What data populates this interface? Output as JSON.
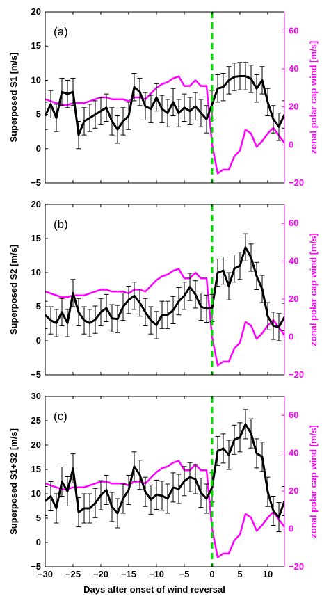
{
  "colors": {
    "s_series": "#000000",
    "wind_series": "#ff00ff",
    "onset_line": "#00dd00"
  },
  "xlabel": "Days after onset of wind reversal",
  "chart_data": [
    {
      "type": "line",
      "panel_label": "(a)",
      "ylabel": "Superposed S1 [m/s]",
      "y2label": "zonal polar cap wind [m/s]",
      "xlim": [
        -30,
        13
      ],
      "ylim": [
        -5,
        20
      ],
      "y2lim": [
        -20,
        70
      ],
      "yticks": [
        -5,
        0,
        5,
        10,
        15,
        20
      ],
      "y2ticks": [
        -20,
        0,
        20,
        40,
        60
      ],
      "xticks": [
        -30,
        -25,
        -20,
        -15,
        -10,
        -5,
        0,
        5,
        10
      ],
      "x": [
        -30,
        -29,
        -28,
        -27,
        -26,
        -25,
        -24,
        -23,
        -22,
        -21,
        -20,
        -19,
        -18,
        -17,
        -16,
        -15,
        -14,
        -13,
        -12,
        -11,
        -10,
        -9,
        -8,
        -7,
        -6,
        -5,
        -4,
        -3,
        -2,
        -1,
        0,
        1,
        2,
        3,
        4,
        5,
        6,
        7,
        8,
        9,
        10,
        11,
        12,
        13
      ],
      "series": [
        {
          "values": [
            4.8,
            6.5,
            4.5,
            8.3,
            8.0,
            8.3,
            2.0,
            4.0,
            4.5,
            5.0,
            5.5,
            6.0,
            4.0,
            2.8,
            4.0,
            4.8,
            9.0,
            8.3,
            6.2,
            5.8,
            7.5,
            5.8,
            5.2,
            6.8,
            5.2,
            6.0,
            5.5,
            6.2,
            5.2,
            4.3,
            6.5,
            8.8,
            9.0,
            10.0,
            10.5,
            10.6,
            10.6,
            10.2,
            8.8,
            10.0,
            6.8,
            4.3,
            3.2,
            5.0
          ],
          "error": [
            2,
            2,
            2,
            2,
            2,
            2,
            2,
            2,
            2,
            2,
            2,
            2,
            2,
            2,
            2,
            2,
            2,
            2,
            2,
            2,
            2,
            2,
            2,
            2,
            2,
            2,
            2,
            2,
            2,
            2,
            2,
            2,
            2,
            2,
            2,
            2,
            2,
            2,
            2,
            2,
            2,
            2,
            2,
            2
          ]
        },
        {
          "axis": "right",
          "x": [
            -30,
            -29,
            -28,
            -27,
            -26,
            -25,
            -24,
            -23,
            -22,
            -21,
            -20,
            -19,
            -18,
            -17,
            -16,
            -15,
            -14,
            -13,
            -12,
            -11,
            -10,
            -9,
            -8,
            -7,
            -6,
            -5,
            -4,
            -3,
            -2,
            -1,
            0,
            1,
            2,
            3,
            4,
            5,
            6,
            7,
            8,
            9,
            10,
            11,
            12,
            13
          ],
          "values": [
            24,
            23,
            22,
            21,
            21,
            22,
            22,
            22,
            23,
            24,
            25,
            25,
            24,
            24,
            24,
            23,
            25,
            25,
            24,
            27,
            30,
            32,
            33,
            35,
            36,
            31,
            31,
            34,
            31,
            31,
            0,
            -15,
            -13,
            -13,
            -6,
            -3,
            8,
            6,
            -1,
            2,
            6,
            9,
            5,
            1
          ]
        }
      ]
    },
    {
      "type": "line",
      "panel_label": "(b)",
      "ylabel": "Superposed S2 [m/s]",
      "y2label": "zonal polar cap wind [m/s]",
      "xlim": [
        -30,
        13
      ],
      "ylim": [
        -5,
        20
      ],
      "y2lim": [
        -20,
        70
      ],
      "yticks": [
        -5,
        0,
        5,
        10,
        15,
        20
      ],
      "y2ticks": [
        -20,
        0,
        20,
        40,
        60
      ],
      "xticks": [
        -30,
        -25,
        -20,
        -15,
        -10,
        -5,
        0,
        5,
        10
      ],
      "x": [
        -30,
        -29,
        -28,
        -27,
        -26,
        -25,
        -24,
        -23,
        -22,
        -21,
        -20,
        -19,
        -18,
        -17,
        -16,
        -15,
        -14,
        -13,
        -12,
        -11,
        -10,
        -9,
        -8,
        -7,
        -6,
        -5,
        -4,
        -3,
        -2,
        -1,
        0,
        1,
        2,
        3,
        4,
        5,
        6,
        7,
        8,
        9,
        10,
        11,
        12,
        13
      ],
      "series": [
        {
          "values": [
            3.8,
            3.0,
            2.6,
            4.2,
            2.6,
            7.0,
            4.2,
            3.0,
            2.6,
            3.1,
            4.2,
            4.8,
            3.3,
            3.2,
            5.0,
            6.0,
            6.6,
            5.6,
            4.2,
            3.0,
            2.3,
            3.8,
            3.8,
            4.5,
            5.8,
            6.6,
            7.9,
            6.8,
            5.0,
            4.7,
            4.8,
            10.0,
            10.3,
            8.0,
            10.6,
            11.0,
            13.7,
            12.2,
            9.5,
            7.6,
            3.6,
            2.2,
            2.0,
            3.5
          ],
          "error": [
            2,
            2,
            2,
            2,
            2,
            2,
            2,
            2,
            2,
            2,
            2,
            2,
            2,
            2,
            2,
            2,
            2,
            2,
            2,
            2,
            2,
            2,
            2,
            2,
            2,
            2,
            2,
            2,
            2,
            2,
            2,
            2,
            2,
            2,
            2,
            2,
            2,
            2,
            2,
            2,
            2,
            2,
            2,
            2
          ]
        },
        {
          "axis": "right",
          "x": [
            -30,
            -29,
            -28,
            -27,
            -26,
            -25,
            -24,
            -23,
            -22,
            -21,
            -20,
            -19,
            -18,
            -17,
            -16,
            -15,
            -14,
            -13,
            -12,
            -11,
            -10,
            -9,
            -8,
            -7,
            -6,
            -5,
            -4,
            -3,
            -2,
            -1,
            0,
            1,
            2,
            3,
            4,
            5,
            6,
            7,
            8,
            9,
            10,
            11,
            12,
            13
          ],
          "values": [
            24,
            23,
            22,
            21,
            21,
            22,
            22,
            22,
            23,
            24,
            25,
            25,
            24,
            24,
            24,
            23,
            25,
            25,
            24,
            27,
            30,
            32,
            33,
            35,
            36,
            31,
            31,
            34,
            31,
            31,
            0,
            -15,
            -13,
            -13,
            -6,
            -3,
            8,
            6,
            -1,
            2,
            6,
            9,
            5,
            1
          ]
        }
      ]
    },
    {
      "type": "line",
      "panel_label": "(c)",
      "ylabel": "Superposed S1+S2 [m/s]",
      "y2label": "zonal polar cap wind [m/s]",
      "xlim": [
        -30,
        13
      ],
      "ylim": [
        -5,
        30
      ],
      "y2lim": [
        -20,
        70
      ],
      "yticks": [
        -5,
        0,
        5,
        10,
        15,
        20,
        25,
        30
      ],
      "y2ticks": [
        -20,
        0,
        20,
        40,
        60
      ],
      "xticks": [
        -30,
        -25,
        -20,
        -15,
        -10,
        -5,
        0,
        5,
        10
      ],
      "x": [
        -30,
        -29,
        -28,
        -27,
        -26,
        -25,
        -24,
        -23,
        -22,
        -21,
        -20,
        -19,
        -18,
        -17,
        -16,
        -15,
        -14,
        -13,
        -12,
        -11,
        -10,
        -9,
        -8,
        -7,
        -6,
        -5,
        -4,
        -3,
        -2,
        -1,
        0,
        1,
        2,
        3,
        4,
        5,
        6,
        7,
        8,
        9,
        10,
        11,
        12,
        13
      ],
      "series": [
        {
          "values": [
            8.5,
            9.5,
            7.0,
            12.5,
            10.5,
            15.2,
            6.2,
            7.0,
            7.0,
            8.1,
            9.7,
            10.8,
            7.3,
            6.0,
            9.0,
            10.8,
            15.6,
            13.9,
            10.4,
            8.8,
            9.8,
            9.6,
            9.0,
            11.3,
            11.0,
            12.6,
            13.4,
            13.0,
            10.2,
            9.0,
            11.3,
            18.8,
            19.3,
            18.0,
            21.1,
            21.6,
            24.3,
            22.4,
            18.3,
            17.6,
            10.4,
            6.5,
            5.2,
            8.5
          ],
          "error": [
            3,
            3,
            3,
            3,
            3,
            3,
            3,
            3,
            3,
            3,
            3,
            3,
            3,
            3,
            3,
            3,
            3,
            3,
            3,
            3,
            3,
            3,
            3,
            3,
            3,
            3,
            3,
            3,
            3,
            3,
            3,
            3,
            3,
            3,
            3,
            3,
            3,
            3,
            3,
            3,
            3,
            3,
            3,
            3
          ]
        },
        {
          "axis": "right",
          "x": [
            -30,
            -29,
            -28,
            -27,
            -26,
            -25,
            -24,
            -23,
            -22,
            -21,
            -20,
            -19,
            -18,
            -17,
            -16,
            -15,
            -14,
            -13,
            -12,
            -11,
            -10,
            -9,
            -8,
            -7,
            -6,
            -5,
            -4,
            -3,
            -2,
            -1,
            0,
            1,
            2,
            3,
            4,
            5,
            6,
            7,
            8,
            9,
            10,
            11,
            12,
            13
          ],
          "values": [
            24,
            23,
            22,
            21,
            21,
            22,
            22,
            22,
            23,
            24,
            25,
            25,
            24,
            24,
            24,
            23,
            25,
            25,
            24,
            27,
            30,
            32,
            33,
            35,
            36,
            31,
            31,
            34,
            31,
            31,
            0,
            -15,
            -13,
            -13,
            -6,
            -3,
            8,
            6,
            -1,
            2,
            6,
            9,
            5,
            1
          ]
        }
      ]
    }
  ]
}
